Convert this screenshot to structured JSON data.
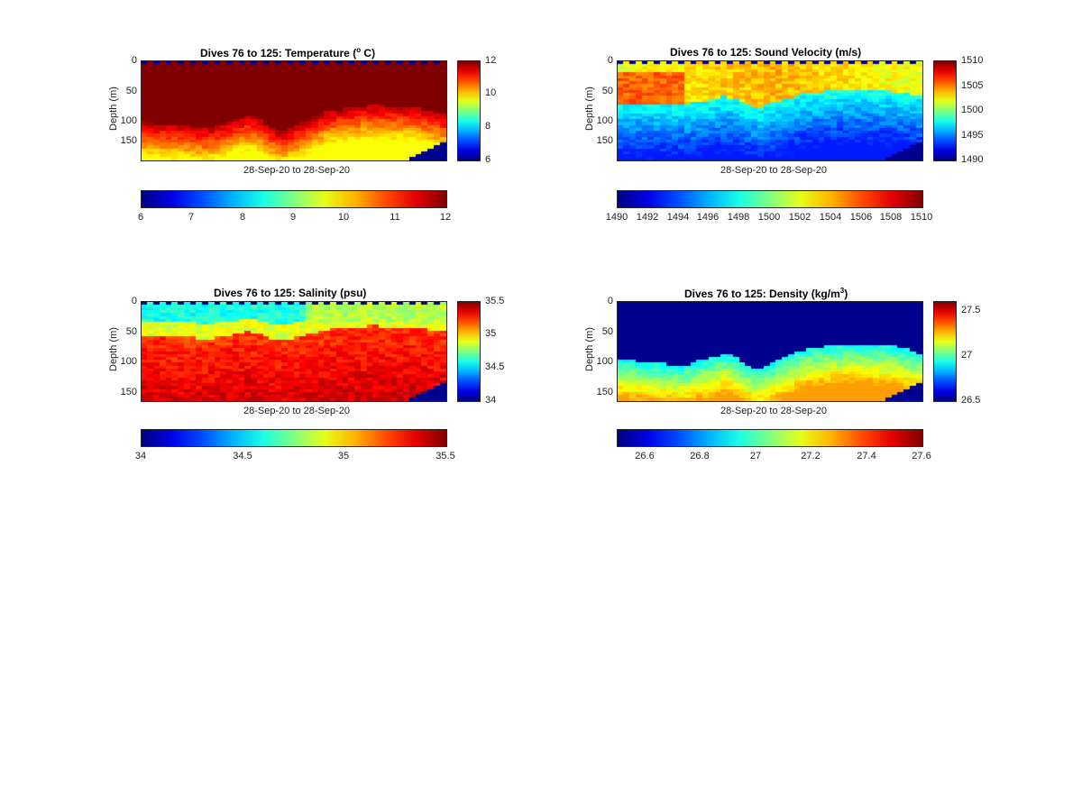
{
  "chart_data": [
    {
      "type": "heatmap",
      "id": "temperature",
      "title": "Dives 76 to 125: Temperature",
      "title_unit_parts": [
        "(",
        "o",
        " C)"
      ],
      "xlabel": "28-Sep-20 to 28-Sep-20",
      "ylabel": "Depth (m)",
      "yticks": [
        "0",
        "50",
        "100",
        "150"
      ],
      "ylim": [
        0,
        165
      ],
      "clim": [
        6,
        12
      ],
      "vbar_ticks": [
        "12",
        "10",
        "8",
        "6"
      ],
      "hbar_ticks": [
        "6",
        "7",
        "8",
        "9",
        "10",
        "11",
        "12"
      ],
      "colormap": "jet",
      "dives": [
        76,
        125
      ]
    },
    {
      "type": "heatmap",
      "id": "sound-velocity",
      "title": "Dives 76 to 125: Sound Velocity (m/s)",
      "xlabel": "28-Sep-20 to 28-Sep-20",
      "ylabel": "Depth (m)",
      "yticks": [
        "0",
        "50",
        "100",
        "150"
      ],
      "ylim": [
        0,
        165
      ],
      "clim": [
        1490,
        1510
      ],
      "vbar_ticks": [
        "1510",
        "1505",
        "1500",
        "1495",
        "1490"
      ],
      "hbar_ticks": [
        "1490",
        "1492",
        "1494",
        "1496",
        "1498",
        "1500",
        "1502",
        "1504",
        "1506",
        "1508",
        "1510"
      ],
      "colormap": "jet",
      "dives": [
        76,
        125
      ]
    },
    {
      "type": "heatmap",
      "id": "salinity",
      "title": "Dives 76 to 125: Salinity (psu)",
      "xlabel": "28-Sep-20 to 28-Sep-20",
      "ylabel": "Depth (m)",
      "yticks": [
        "0",
        "50",
        "100",
        "150"
      ],
      "ylim": [
        0,
        165
      ],
      "clim": [
        34,
        35.5
      ],
      "vbar_ticks": [
        "35.5",
        "35",
        "34.5",
        "34"
      ],
      "hbar_ticks": [
        "34",
        "34.5",
        "35",
        "35.5"
      ],
      "colormap": "jet",
      "dives": [
        76,
        125
      ]
    },
    {
      "type": "heatmap",
      "id": "density",
      "title": "Dives 76 to 125: Density",
      "title_unit_parts": [
        "(kg/m",
        "3",
        ")"
      ],
      "xlabel": "28-Sep-20 to 28-Sep-20",
      "ylabel": "Depth (m)",
      "yticks": [
        "0",
        "50",
        "100",
        "150"
      ],
      "ylim": [
        0,
        165
      ],
      "clim": [
        26.5,
        27.6
      ],
      "vbar_ticks": [
        "27.5",
        "27",
        "26.5"
      ],
      "hbar_ticks": [
        "26.6",
        "26.8",
        "27",
        "27.2",
        "27.4",
        "27.6"
      ],
      "colormap": "jet",
      "dives": [
        76,
        125
      ]
    }
  ]
}
